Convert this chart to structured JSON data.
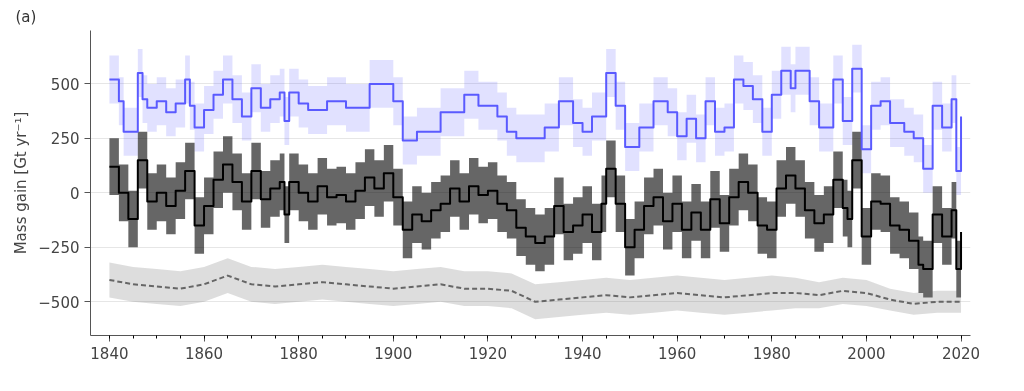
{
  "chart_data": {
    "type": "step",
    "ylabel": "Mass gain [Gt yr⁻¹]",
    "annotations": [
      "(a)"
    ],
    "xlim": [
      1836,
      2022
    ],
    "xticks": [
      1840,
      1860,
      1880,
      1900,
      1920,
      1940,
      1960,
      1980,
      2000,
      2020
    ],
    "ylim": [
      -655,
      745
    ],
    "yticks": [
      {
        "value": -500,
        "label": "−500"
      },
      {
        "value": -250,
        "label": "−250"
      },
      0,
      250,
      500
    ],
    "grid": "y",
    "series": [
      {
        "color": "#5a5aff",
        "line_style": "solid",
        "x": [
          1840,
          1842,
          1843,
          1846,
          1847,
          1848,
          1850,
          1852,
          1854,
          1856,
          1857,
          1858,
          1860,
          1862,
          1864,
          1866,
          1868,
          1870,
          1872,
          1874,
          1876,
          1877,
          1878,
          1880,
          1882,
          1886,
          1890,
          1895,
          1898,
          1900,
          1902,
          1905,
          1910,
          1915,
          1918,
          1920,
          1922,
          1924,
          1926,
          1930,
          1932,
          1935,
          1938,
          1940,
          1942,
          1945,
          1947,
          1949,
          1952,
          1955,
          1958,
          1960,
          1962,
          1964,
          1966,
          1968,
          1970,
          1972,
          1974,
          1976,
          1978,
          1980,
          1982,
          1984,
          1985,
          1988,
          1990,
          1993,
          1995,
          1997,
          1999,
          2001,
          2003,
          2005,
          2008,
          2010,
          2012,
          2014,
          2016,
          2018,
          2019,
          2020
        ],
        "values": [
          520,
          420,
          280,
          550,
          430,
          390,
          420,
          370,
          410,
          520,
          400,
          300,
          380,
          450,
          520,
          430,
          350,
          480,
          390,
          430,
          460,
          330,
          460,
          410,
          380,
          420,
          390,
          500,
          500,
          420,
          240,
          280,
          370,
          450,
          400,
          400,
          350,
          280,
          250,
          250,
          300,
          420,
          320,
          280,
          350,
          550,
          400,
          210,
          300,
          420,
          370,
          260,
          340,
          250,
          420,
          280,
          300,
          520,
          490,
          430,
          280,
          450,
          560,
          480,
          560,
          420,
          300,
          520,
          330,
          570,
          200,
          400,
          420,
          320,
          280,
          250,
          110,
          400,
          300,
          430,
          100,
          350
        ],
        "lower": [
          410,
          310,
          170,
          440,
          320,
          280,
          310,
          260,
          300,
          410,
          290,
          190,
          270,
          340,
          410,
          320,
          240,
          370,
          280,
          320,
          350,
          220,
          350,
          300,
          270,
          310,
          280,
          390,
          390,
          310,
          130,
          170,
          260,
          340,
          290,
          290,
          240,
          170,
          140,
          140,
          190,
          310,
          210,
          170,
          240,
          440,
          290,
          100,
          190,
          310,
          260,
          150,
          230,
          140,
          310,
          170,
          190,
          410,
          380,
          320,
          170,
          340,
          450,
          370,
          450,
          310,
          190,
          410,
          220,
          460,
          90,
          290,
          310,
          210,
          170,
          140,
          0,
          290,
          190,
          320,
          -10,
          240
        ],
        "upper": [
          630,
          530,
          390,
          660,
          540,
          500,
          530,
          480,
          520,
          630,
          510,
          410,
          490,
          560,
          630,
          540,
          460,
          590,
          500,
          540,
          570,
          440,
          570,
          520,
          490,
          530,
          500,
          610,
          610,
          530,
          350,
          390,
          480,
          560,
          510,
          510,
          460,
          390,
          360,
          360,
          410,
          530,
          430,
          390,
          460,
          660,
          510,
          320,
          410,
          530,
          480,
          370,
          450,
          360,
          530,
          390,
          410,
          630,
          600,
          540,
          390,
          560,
          670,
          590,
          670,
          530,
          410,
          630,
          440,
          680,
          310,
          510,
          530,
          430,
          390,
          360,
          220,
          510,
          410,
          540,
          210,
          460
        ]
      },
      {
        "color": "#000000",
        "line_style": "solid",
        "x": [
          1840,
          1842,
          1844,
          1846,
          1848,
          1850,
          1852,
          1854,
          1856,
          1858,
          1860,
          1862,
          1864,
          1866,
          1868,
          1870,
          1872,
          1874,
          1876,
          1877,
          1878,
          1880,
          1882,
          1884,
          1886,
          1888,
          1890,
          1892,
          1894,
          1896,
          1898,
          1900,
          1902,
          1904,
          1906,
          1908,
          1910,
          1912,
          1914,
          1916,
          1918,
          1920,
          1922,
          1924,
          1926,
          1928,
          1930,
          1932,
          1934,
          1936,
          1938,
          1940,
          1942,
          1944,
          1945,
          1947,
          1949,
          1951,
          1953,
          1955,
          1957,
          1959,
          1961,
          1963,
          1965,
          1967,
          1969,
          1971,
          1973,
          1975,
          1977,
          1979,
          1981,
          1983,
          1985,
          1987,
          1989,
          1991,
          1993,
          1995,
          1996,
          1997,
          1999,
          2001,
          2003,
          2005,
          2007,
          2009,
          2011,
          2012,
          2014,
          2016,
          2018,
          2019,
          2020
        ],
        "values": [
          120,
          0,
          -120,
          150,
          -40,
          0,
          -60,
          10,
          100,
          -150,
          -60,
          60,
          130,
          50,
          -40,
          100,
          -30,
          20,
          50,
          -100,
          50,
          0,
          -40,
          30,
          -20,
          -10,
          -40,
          10,
          70,
          20,
          90,
          -20,
          -170,
          -100,
          -130,
          -80,
          -50,
          20,
          -40,
          30,
          -10,
          10,
          -50,
          -80,
          -160,
          -200,
          -230,
          -200,
          -60,
          -180,
          -150,
          -100,
          -180,
          -50,
          110,
          -50,
          -250,
          -170,
          -60,
          -20,
          -130,
          -50,
          -170,
          -90,
          -170,
          -30,
          -140,
          -20,
          50,
          0,
          -150,
          -170,
          20,
          80,
          20,
          -80,
          -140,
          -100,
          60,
          -70,
          -120,
          150,
          -200,
          -40,
          -50,
          -150,
          -170,
          -220,
          -330,
          -350,
          -100,
          -200,
          -80,
          -350,
          -180
        ],
        "lower": [
          -10,
          -130,
          -250,
          20,
          -170,
          -130,
          -190,
          -120,
          -30,
          -280,
          -190,
          -70,
          0,
          -80,
          -170,
          -30,
          -160,
          -110,
          -80,
          -230,
          -80,
          -130,
          -170,
          -100,
          -150,
          -140,
          -170,
          -120,
          -60,
          -110,
          -40,
          -150,
          -300,
          -230,
          -260,
          -210,
          -180,
          -110,
          -170,
          -100,
          -140,
          -120,
          -180,
          -210,
          -290,
          -330,
          -360,
          -330,
          -190,
          -310,
          -280,
          -230,
          -310,
          -180,
          -20,
          -180,
          -380,
          -300,
          -190,
          -150,
          -260,
          -180,
          -300,
          -220,
          -300,
          -160,
          -270,
          -150,
          -80,
          -130,
          -280,
          -300,
          -110,
          -50,
          -110,
          -210,
          -270,
          -230,
          -70,
          -200,
          -250,
          20,
          -330,
          -170,
          -180,
          -280,
          -300,
          -350,
          -460,
          -480,
          -230,
          -330,
          -210,
          -480,
          -310
        ],
        "upper": [
          250,
          130,
          10,
          280,
          90,
          130,
          70,
          140,
          230,
          -20,
          70,
          190,
          260,
          180,
          90,
          230,
          100,
          150,
          180,
          30,
          180,
          130,
          90,
          160,
          110,
          120,
          90,
          140,
          200,
          150,
          220,
          110,
          -40,
          30,
          0,
          50,
          80,
          150,
          90,
          160,
          120,
          140,
          80,
          50,
          -30,
          -70,
          -100,
          -70,
          70,
          -50,
          -20,
          30,
          -50,
          80,
          240,
          80,
          -120,
          -40,
          70,
          110,
          0,
          80,
          -40,
          40,
          -40,
          100,
          -10,
          110,
          180,
          130,
          -20,
          -40,
          150,
          210,
          150,
          50,
          -10,
          30,
          190,
          60,
          10,
          280,
          -70,
          90,
          80,
          -20,
          -40,
          -90,
          -200,
          -220,
          30,
          -70,
          50,
          -220,
          -50
        ]
      },
      {
        "type": "line",
        "color": "#666666",
        "line_style": "dashed",
        "x": [
          1840,
          1845,
          1850,
          1855,
          1860,
          1865,
          1870,
          1875,
          1880,
          1885,
          1890,
          1895,
          1900,
          1905,
          1910,
          1915,
          1920,
          1925,
          1930,
          1935,
          1940,
          1945,
          1950,
          1955,
          1960,
          1965,
          1970,
          1975,
          1980,
          1985,
          1990,
          1995,
          2000,
          2005,
          2010,
          2015,
          2020
        ],
        "values": [
          -400,
          -420,
          -430,
          -440,
          -420,
          -380,
          -420,
          -430,
          -420,
          -410,
          -420,
          -430,
          -440,
          -430,
          -420,
          -440,
          -440,
          -450,
          -500,
          -490,
          -480,
          -470,
          -480,
          -470,
          -460,
          -470,
          -480,
          -470,
          -460,
          -460,
          -470,
          -450,
          -460,
          -490,
          -510,
          -500,
          -500
        ],
        "lower": [
          -480,
          -500,
          -510,
          -520,
          -500,
          -460,
          -500,
          -510,
          -500,
          -490,
          -500,
          -510,
          -520,
          -510,
          -500,
          -520,
          -520,
          -530,
          -580,
          -570,
          -560,
          -550,
          -560,
          -550,
          -540,
          -550,
          -560,
          -550,
          -540,
          -530,
          -530,
          -510,
          -520,
          -540,
          -560,
          -550,
          -550
        ],
        "upper": [
          -320,
          -340,
          -350,
          -360,
          -340,
          -300,
          -340,
          -350,
          -340,
          -330,
          -340,
          -350,
          -360,
          -350,
          -340,
          -360,
          -360,
          -370,
          -420,
          -410,
          -400,
          -390,
          -400,
          -390,
          -380,
          -390,
          -400,
          -390,
          -380,
          -390,
          -410,
          -390,
          -400,
          -440,
          -460,
          -450,
          -450
        ]
      }
    ]
  }
}
